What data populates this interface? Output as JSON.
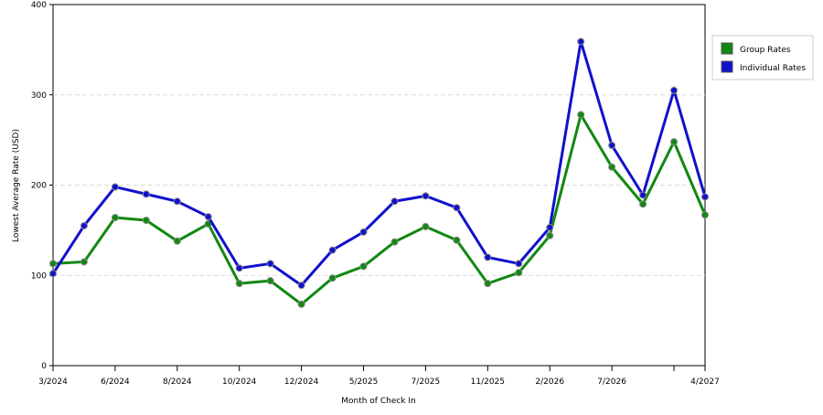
{
  "chart_data": {
    "type": "line",
    "x_label": "Month of Check In",
    "y_label": "Lowest Average Rate (USD)",
    "categories": [
      "3/2024",
      null,
      "6/2024",
      null,
      "8/2024",
      null,
      "10/2024",
      null,
      "12/2024",
      null,
      "5/2025",
      null,
      "7/2025",
      null,
      "11/2025",
      null,
      "2/2026",
      null,
      "7/2026",
      null,
      null,
      "4/2027"
    ],
    "series": [
      {
        "name": "Group Rates",
        "color": "#118811",
        "values": [
          113,
          115,
          164,
          161,
          138,
          157,
          91,
          94,
          68,
          97,
          110,
          137,
          154,
          139,
          91,
          103,
          144,
          278,
          220,
          179,
          248,
          167
        ]
      },
      {
        "name": "Individual Rates",
        "color": "#1111cc",
        "values": [
          102,
          155,
          198,
          190,
          182,
          165,
          108,
          113,
          89,
          128,
          148,
          182,
          188,
          175,
          120,
          113,
          153,
          359,
          244,
          189,
          305,
          187
        ]
      }
    ],
    "ylim": [
      0,
      400
    ],
    "yticks": [
      0,
      100,
      200,
      300,
      400
    ],
    "grid": true,
    "legend": "right"
  }
}
